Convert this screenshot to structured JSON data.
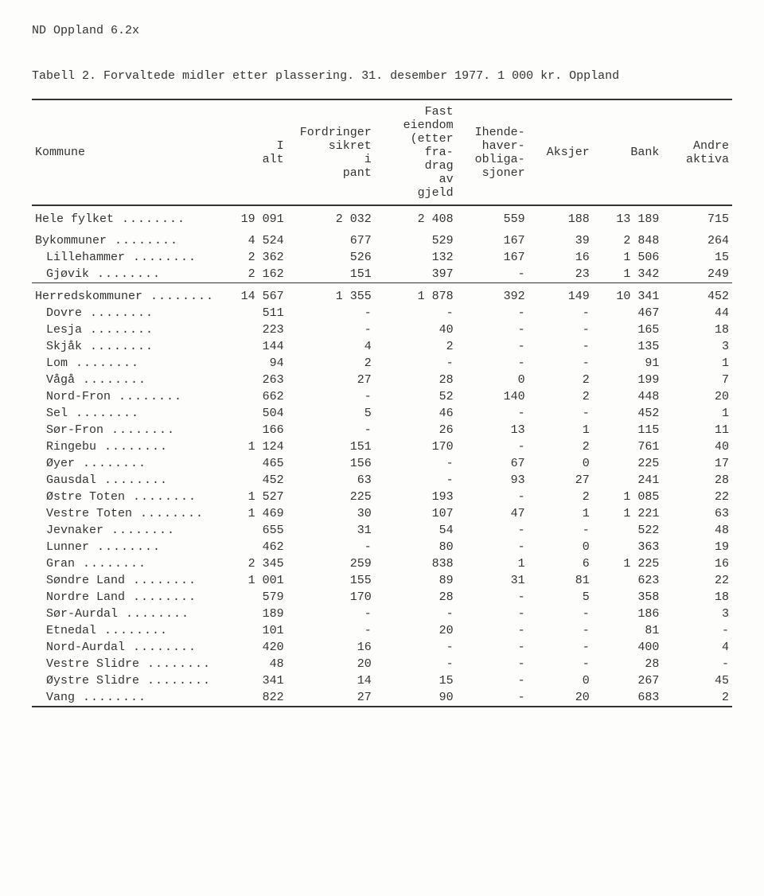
{
  "header": "ND Oppland 6.2x",
  "caption": "Tabell 2.  Forvaltede midler etter plassering.  31. desember 1977.  1 000 kr.  Oppland",
  "columns": [
    "Kommune",
    "I alt",
    "Fordringer sikret i pant",
    "Fast eiendom (etter fra- drag av gjeld",
    "Ihende- haver- obliga- sjoner",
    "Aksjer",
    "Bank",
    "Andre aktiva"
  ],
  "groups": [
    {
      "thinRuleAfter": false,
      "rows": [
        {
          "label": "Hele fylket",
          "indent": false,
          "cells": [
            "19 091",
            "2 032",
            "2 408",
            "559",
            "188",
            "13 189",
            "715"
          ]
        }
      ]
    },
    {
      "thinRuleAfter": true,
      "rows": [
        {
          "label": "Bykommuner",
          "indent": false,
          "cells": [
            "4 524",
            "677",
            "529",
            "167",
            "39",
            "2 848",
            "264"
          ]
        },
        {
          "label": "Lillehammer",
          "indent": true,
          "cells": [
            "2 362",
            "526",
            "132",
            "167",
            "16",
            "1 506",
            "15"
          ]
        },
        {
          "label": "Gjøvik",
          "indent": true,
          "cells": [
            "2 162",
            "151",
            "397",
            "-",
            "23",
            "1 342",
            "249"
          ]
        }
      ]
    },
    {
      "thinRuleAfter": false,
      "rows": [
        {
          "label": "Herredskommuner",
          "indent": false,
          "cells": [
            "14 567",
            "1 355",
            "1 878",
            "392",
            "149",
            "10 341",
            "452"
          ]
        },
        {
          "label": "Dovre",
          "indent": true,
          "cells": [
            "511",
            "-",
            "-",
            "-",
            "-",
            "467",
            "44"
          ]
        },
        {
          "label": "Lesja",
          "indent": true,
          "cells": [
            "223",
            "-",
            "40",
            "-",
            "-",
            "165",
            "18"
          ]
        },
        {
          "label": "Skjåk",
          "indent": true,
          "cells": [
            "144",
            "4",
            "2",
            "-",
            "-",
            "135",
            "3"
          ]
        },
        {
          "label": "Lom",
          "indent": true,
          "cells": [
            "94",
            "2",
            "-",
            "-",
            "-",
            "91",
            "1"
          ]
        },
        {
          "label": "Vågå",
          "indent": true,
          "cells": [
            "263",
            "27",
            "28",
            "0",
            "2",
            "199",
            "7"
          ]
        },
        {
          "label": "Nord-Fron",
          "indent": true,
          "cells": [
            "662",
            "-",
            "52",
            "140",
            "2",
            "448",
            "20"
          ]
        },
        {
          "label": "Sel",
          "indent": true,
          "cells": [
            "504",
            "5",
            "46",
            "-",
            "-",
            "452",
            "1"
          ]
        },
        {
          "label": "Sør-Fron",
          "indent": true,
          "cells": [
            "166",
            "-",
            "26",
            "13",
            "1",
            "115",
            "11"
          ]
        },
        {
          "label": "Ringebu",
          "indent": true,
          "cells": [
            "1 124",
            "151",
            "170",
            "-",
            "2",
            "761",
            "40"
          ]
        },
        {
          "label": "Øyer",
          "indent": true,
          "cells": [
            "465",
            "156",
            "-",
            "67",
            "0",
            "225",
            "17"
          ]
        },
        {
          "label": "Gausdal",
          "indent": true,
          "cells": [
            "452",
            "63",
            "-",
            "93",
            "27",
            "241",
            "28"
          ]
        },
        {
          "label": "Østre Toten",
          "indent": true,
          "cells": [
            "1 527",
            "225",
            "193",
            "-",
            "2",
            "1 085",
            "22"
          ]
        },
        {
          "label": "Vestre Toten",
          "indent": true,
          "cells": [
            "1 469",
            "30",
            "107",
            "47",
            "1",
            "1 221",
            "63"
          ]
        },
        {
          "label": "Jevnaker",
          "indent": true,
          "cells": [
            "655",
            "31",
            "54",
            "-",
            "-",
            "522",
            "48"
          ]
        },
        {
          "label": "Lunner",
          "indent": true,
          "cells": [
            "462",
            "-",
            "80",
            "-",
            "0",
            "363",
            "19"
          ]
        },
        {
          "label": "Gran",
          "indent": true,
          "cells": [
            "2 345",
            "259",
            "838",
            "1",
            "6",
            "1 225",
            "16"
          ]
        },
        {
          "label": "Søndre Land",
          "indent": true,
          "cells": [
            "1 001",
            "155",
            "89",
            "31",
            "81",
            "623",
            "22"
          ]
        },
        {
          "label": "Nordre Land",
          "indent": true,
          "cells": [
            "579",
            "170",
            "28",
            "-",
            "5",
            "358",
            "18"
          ]
        },
        {
          "label": "Sør-Aurdal",
          "indent": true,
          "cells": [
            "189",
            "-",
            "-",
            "-",
            "-",
            "186",
            "3"
          ]
        },
        {
          "label": "Etnedal",
          "indent": true,
          "cells": [
            "101",
            "-",
            "20",
            "-",
            "-",
            "81",
            "-"
          ]
        },
        {
          "label": "Nord-Aurdal",
          "indent": true,
          "cells": [
            "420",
            "16",
            "-",
            "-",
            "-",
            "400",
            "4"
          ]
        },
        {
          "label": "Vestre Slidre",
          "indent": true,
          "cells": [
            "48",
            "20",
            "-",
            "-",
            "-",
            "28",
            "-"
          ]
        },
        {
          "label": "Øystre Slidre",
          "indent": true,
          "cells": [
            "341",
            "14",
            "15",
            "-",
            "0",
            "267",
            "45"
          ]
        },
        {
          "label": "Vang",
          "indent": true,
          "cells": [
            "822",
            "27",
            "90",
            "-",
            "20",
            "683",
            "2"
          ]
        }
      ]
    }
  ],
  "style": {
    "colWidthsPct": [
      20,
      11,
      13,
      13,
      11,
      10,
      11,
      11
    ],
    "background": "#fdfefb",
    "text": "#333333",
    "ruleColor": "#333333"
  }
}
